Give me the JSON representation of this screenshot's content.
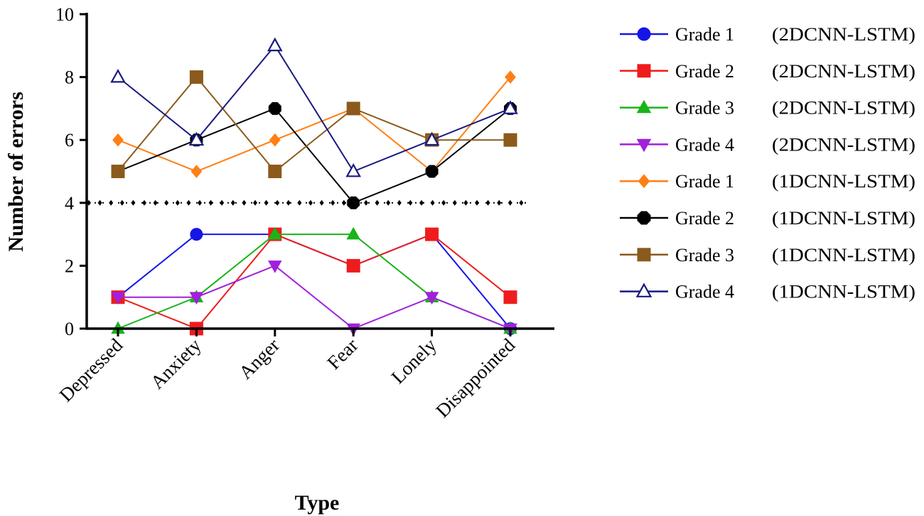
{
  "chart_data": {
    "type": "line",
    "title": "",
    "xlabel": "Type",
    "ylabel": "Number of errors",
    "categories": [
      "Depressed",
      "Anxiety",
      "Anger",
      "Fear",
      "Lonely",
      "Disappointed"
    ],
    "ylim": [
      0,
      10
    ],
    "yticks": [
      0,
      2,
      4,
      6,
      8,
      10
    ],
    "grid": false,
    "legend_position": "right",
    "threshold_line": {
      "y": 4,
      "style": "dotted",
      "marker": "diamond",
      "color": "#000000"
    },
    "series": [
      {
        "name": "Grade 1",
        "model": "(2DCNN-LSTM)",
        "color": "#1515e8",
        "marker": "circle",
        "fill": "solid",
        "values": [
          1,
          3,
          3,
          2,
          3,
          0
        ]
      },
      {
        "name": "Grade 2",
        "model": "(2DCNN-LSTM)",
        "color": "#ee1c1c",
        "marker": "square",
        "fill": "solid",
        "values": [
          1,
          0,
          3,
          2,
          3,
          1
        ]
      },
      {
        "name": "Grade 3",
        "model": "(2DCNN-LSTM)",
        "color": "#19b419",
        "marker": "triangle-up",
        "fill": "solid",
        "values": [
          0,
          1,
          3,
          3,
          1,
          0
        ]
      },
      {
        "name": "Grade 4",
        "model": "(2DCNN-LSTM)",
        "color": "#a21fdc",
        "marker": "triangle-down",
        "fill": "solid",
        "values": [
          1,
          1,
          2,
          0,
          1,
          0
        ]
      },
      {
        "name": "Grade 1",
        "model": "(1DCNN-LSTM)",
        "color": "#ff7f14",
        "marker": "diamond",
        "fill": "solid",
        "values": [
          6,
          5,
          6,
          7,
          5,
          8
        ]
      },
      {
        "name": "Grade 2",
        "model": "(1DCNN-LSTM)",
        "color": "#000000",
        "marker": "octagon",
        "fill": "solid",
        "values": [
          5,
          6,
          7,
          4,
          5,
          7
        ]
      },
      {
        "name": "Grade 3",
        "model": "(1DCNN-LSTM)",
        "color": "#8b5a1c",
        "marker": "square",
        "fill": "solid",
        "values": [
          5,
          8,
          5,
          7,
          6,
          6
        ]
      },
      {
        "name": "Grade 4",
        "model": "(1DCNN-LSTM)",
        "color": "#1a1a80",
        "marker": "triangle-up",
        "fill": "hollow",
        "values": [
          8,
          6,
          9,
          5,
          6,
          7
        ]
      }
    ]
  }
}
